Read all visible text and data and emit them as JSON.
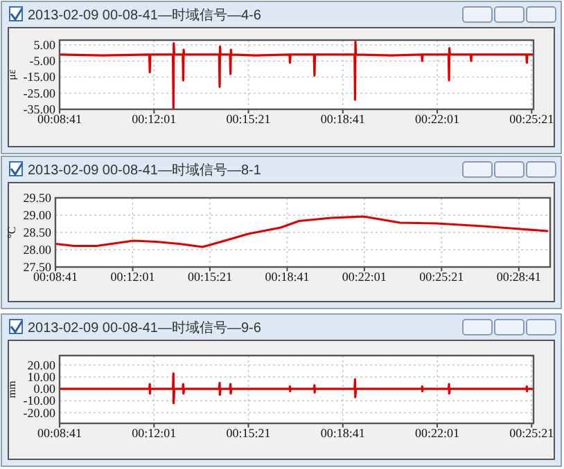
{
  "chart_data": [
    {
      "type": "line",
      "title": "2013-02-09 00-08-41—时域信号—4-6",
      "ylabel": "με",
      "color": "#e00000",
      "grid": true,
      "xlim": [
        0.1447,
        0.4236
      ],
      "xticks": [
        {
          "value": 0.144722,
          "label": "00:08:41"
        },
        {
          "value": 0.200278,
          "label": "00:12:01"
        },
        {
          "value": 0.255833,
          "label": "00:15:21"
        },
        {
          "value": 0.311389,
          "label": "00:18:41"
        },
        {
          "value": 0.366944,
          "label": "00:22:01"
        },
        {
          "value": 0.4225,
          "label": "00:25:21"
        }
      ],
      "ylim": [
        -35,
        8
      ],
      "yticks": [
        {
          "value": 5,
          "label": "5.00"
        },
        {
          "value": -5,
          "label": "-5.00"
        },
        {
          "value": -15,
          "label": "-15.00"
        },
        {
          "value": -25,
          "label": "-25.00"
        },
        {
          "value": -35,
          "label": "-35.00"
        }
      ],
      "x": [
        0.1447,
        0.17,
        0.1975,
        0.1978,
        0.1981,
        0.2114,
        0.2117,
        0.2119,
        0.2122,
        0.2172,
        0.2175,
        0.2177,
        0.218,
        0.2386,
        0.2389,
        0.2391,
        0.2394,
        0.245,
        0.2453,
        0.2455,
        0.2458,
        0.26,
        0.28,
        0.2803,
        0.2806,
        0.2944,
        0.2947,
        0.295,
        0.3183,
        0.3186,
        0.3188,
        0.3191,
        0.34,
        0.3578,
        0.3581,
        0.3584,
        0.3736,
        0.3739,
        0.3741,
        0.3744,
        0.3866,
        0.3869,
        0.3872,
        0.4194,
        0.4197,
        0.42,
        0.4236
      ],
      "values": [
        -1,
        -1.5,
        -1,
        -12,
        -1,
        -1,
        -35,
        6,
        -1,
        -1,
        -17,
        2,
        -1,
        -1,
        -21,
        4,
        -1,
        -1,
        -13,
        2,
        -1,
        -1.5,
        -1,
        -6,
        -1,
        -1,
        -14,
        -1,
        -1,
        -29,
        7,
        -1,
        -1.5,
        -1,
        -5,
        -1,
        -1,
        -17,
        3,
        -1,
        -1,
        -5,
        -1,
        -1,
        -6,
        -1,
        -1
      ]
    },
    {
      "type": "line",
      "title": "2013-02-09 00-08-41—时域信号—8-1",
      "ylabel": "°C",
      "color": "#e00000",
      "grid": true,
      "xlim": [
        0.1447,
        0.5006
      ],
      "xticks": [
        {
          "value": 0.144722,
          "label": "00:08:41"
        },
        {
          "value": 0.200278,
          "label": "00:12:01"
        },
        {
          "value": 0.255833,
          "label": "00:15:21"
        },
        {
          "value": 0.311389,
          "label": "00:18:41"
        },
        {
          "value": 0.366944,
          "label": "00:22:01"
        },
        {
          "value": 0.4225,
          "label": "00:25:21"
        },
        {
          "value": 0.478056,
          "label": "00:28:41"
        }
      ],
      "ylim": [
        27.5,
        29.5
      ],
      "yticks": [
        {
          "value": 27.5,
          "label": "27.50"
        },
        {
          "value": 28,
          "label": "28.00"
        },
        {
          "value": 28.5,
          "label": "28.50"
        },
        {
          "value": 29,
          "label": "29.00"
        },
        {
          "value": 29.5,
          "label": "29.50"
        }
      ],
      "x": [
        0.1447,
        0.1581,
        0.1744,
        0.2008,
        0.2172,
        0.2339,
        0.2506,
        0.2639,
        0.2836,
        0.3067,
        0.32,
        0.3431,
        0.3664,
        0.3928,
        0.4192,
        0.4522,
        0.4786,
        0.4986
      ],
      "values": [
        28.17,
        28.11,
        28.11,
        28.26,
        28.23,
        28.17,
        28.08,
        28.23,
        28.46,
        28.64,
        28.83,
        28.92,
        28.96,
        28.78,
        28.76,
        28.68,
        28.6,
        28.54
      ]
    },
    {
      "type": "line",
      "title": "2013-02-09 00-08-41—时域信号—9-6",
      "ylabel": "mm",
      "color": "#e00000",
      "grid": true,
      "xlim": [
        0.1447,
        0.4236
      ],
      "xticks": [
        {
          "value": 0.144722,
          "label": "00:08:41"
        },
        {
          "value": 0.200278,
          "label": "00:12:01"
        },
        {
          "value": 0.255833,
          "label": "00:15:21"
        },
        {
          "value": 0.311389,
          "label": "00:18:41"
        },
        {
          "value": 0.366944,
          "label": "00:22:01"
        },
        {
          "value": 0.4225,
          "label": "00:25:21"
        }
      ],
      "ylim": [
        -29,
        28
      ],
      "yticks": [
        {
          "value": 20,
          "label": "20.00"
        },
        {
          "value": 10,
          "label": "10.00"
        },
        {
          "value": 0,
          "label": "0.00"
        },
        {
          "value": -10,
          "label": "-10.00"
        },
        {
          "value": -20,
          "label": "-20.00"
        }
      ],
      "x": [
        0.1447,
        0.1975,
        0.1978,
        0.1979,
        0.1981,
        0.2114,
        0.2117,
        0.2118,
        0.2122,
        0.2172,
        0.2175,
        0.2176,
        0.218,
        0.2386,
        0.2389,
        0.239,
        0.2394,
        0.245,
        0.2453,
        0.2454,
        0.2458,
        0.28,
        0.2803,
        0.2804,
        0.2806,
        0.2944,
        0.2947,
        0.2948,
        0.295,
        0.3183,
        0.3186,
        0.3187,
        0.3191,
        0.3578,
        0.3581,
        0.3582,
        0.3584,
        0.3736,
        0.3739,
        0.374,
        0.3744,
        0.4194,
        0.4197,
        0.4198,
        0.42,
        0.4236
      ],
      "values": [
        0,
        0,
        4,
        -4,
        0,
        0,
        13,
        -12,
        0,
        0,
        4,
        -4,
        0,
        0,
        5,
        -5,
        0,
        0,
        4,
        -4,
        0,
        0,
        2,
        -2,
        0,
        0,
        3,
        -3,
        0,
        0,
        8,
        -7,
        0,
        0,
        2,
        -2,
        0,
        0,
        4,
        -4,
        0,
        0,
        2,
        -2,
        0,
        0
      ]
    }
  ]
}
